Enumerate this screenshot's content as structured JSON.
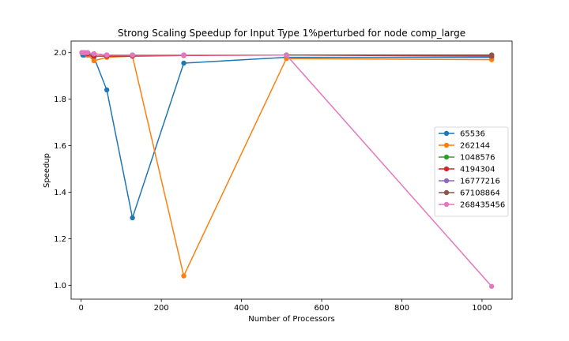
{
  "chart_data": {
    "type": "line",
    "title": "Strong Scaling Speedup for Input Type 1%perturbed for node comp_large",
    "xlabel": "Number of Processors",
    "ylabel": "Speedup",
    "xlim": [
      -25,
      1075
    ],
    "ylim": [
      0.94,
      2.05
    ],
    "xticks": [
      0,
      200,
      400,
      600,
      800,
      1000
    ],
    "yticks": [
      1.0,
      1.2,
      1.4,
      1.6,
      1.8,
      2.0
    ],
    "xtick_labels": [
      "0",
      "200",
      "400",
      "600",
      "800",
      "1000"
    ],
    "ytick_labels": [
      "1.0",
      "1.2",
      "1.4",
      "1.6",
      "1.8",
      "2.0"
    ],
    "grid": false,
    "legend_position": "center-right",
    "x": [
      2,
      4,
      8,
      16,
      32,
      64,
      128,
      256,
      512,
      1024
    ],
    "series": [
      {
        "name": "65536",
        "color": "#1f77b4",
        "values": [
          2.0,
          1.99,
          1.99,
          1.99,
          1.98,
          1.84,
          1.29,
          1.955,
          1.98,
          1.98
        ]
      },
      {
        "name": "262144",
        "color": "#ff7f0e",
        "values": [
          2.0,
          2.0,
          2.0,
          1.99,
          1.965,
          1.98,
          1.985,
          1.04,
          1.975,
          1.97
        ]
      },
      {
        "name": "1048576",
        "color": "#2ca02c",
        "values": [
          2.0,
          2.0,
          2.0,
          2.0,
          1.995,
          1.99,
          1.99,
          1.99,
          1.99,
          1.99
        ]
      },
      {
        "name": "4194304",
        "color": "#d62728",
        "values": [
          2.0,
          2.0,
          2.0,
          1.995,
          1.985,
          1.985,
          1.985,
          1.988,
          1.99,
          1.985
        ]
      },
      {
        "name": "16777216",
        "color": "#9467bd",
        "values": [
          2.0,
          2.0,
          2.0,
          2.0,
          1.995,
          1.99,
          1.99,
          1.99,
          1.99,
          1.99
        ]
      },
      {
        "name": "67108864",
        "color": "#8c564b",
        "values": [
          2.0,
          2.0,
          2.0,
          2.0,
          1.995,
          1.99,
          1.99,
          1.99,
          1.99,
          1.99
        ]
      },
      {
        "name": "268435456",
        "color": "#e377c2",
        "values": [
          2.0,
          2.0,
          2.0,
          2.0,
          1.995,
          1.99,
          1.99,
          1.99,
          1.99,
          0.995
        ]
      }
    ]
  }
}
